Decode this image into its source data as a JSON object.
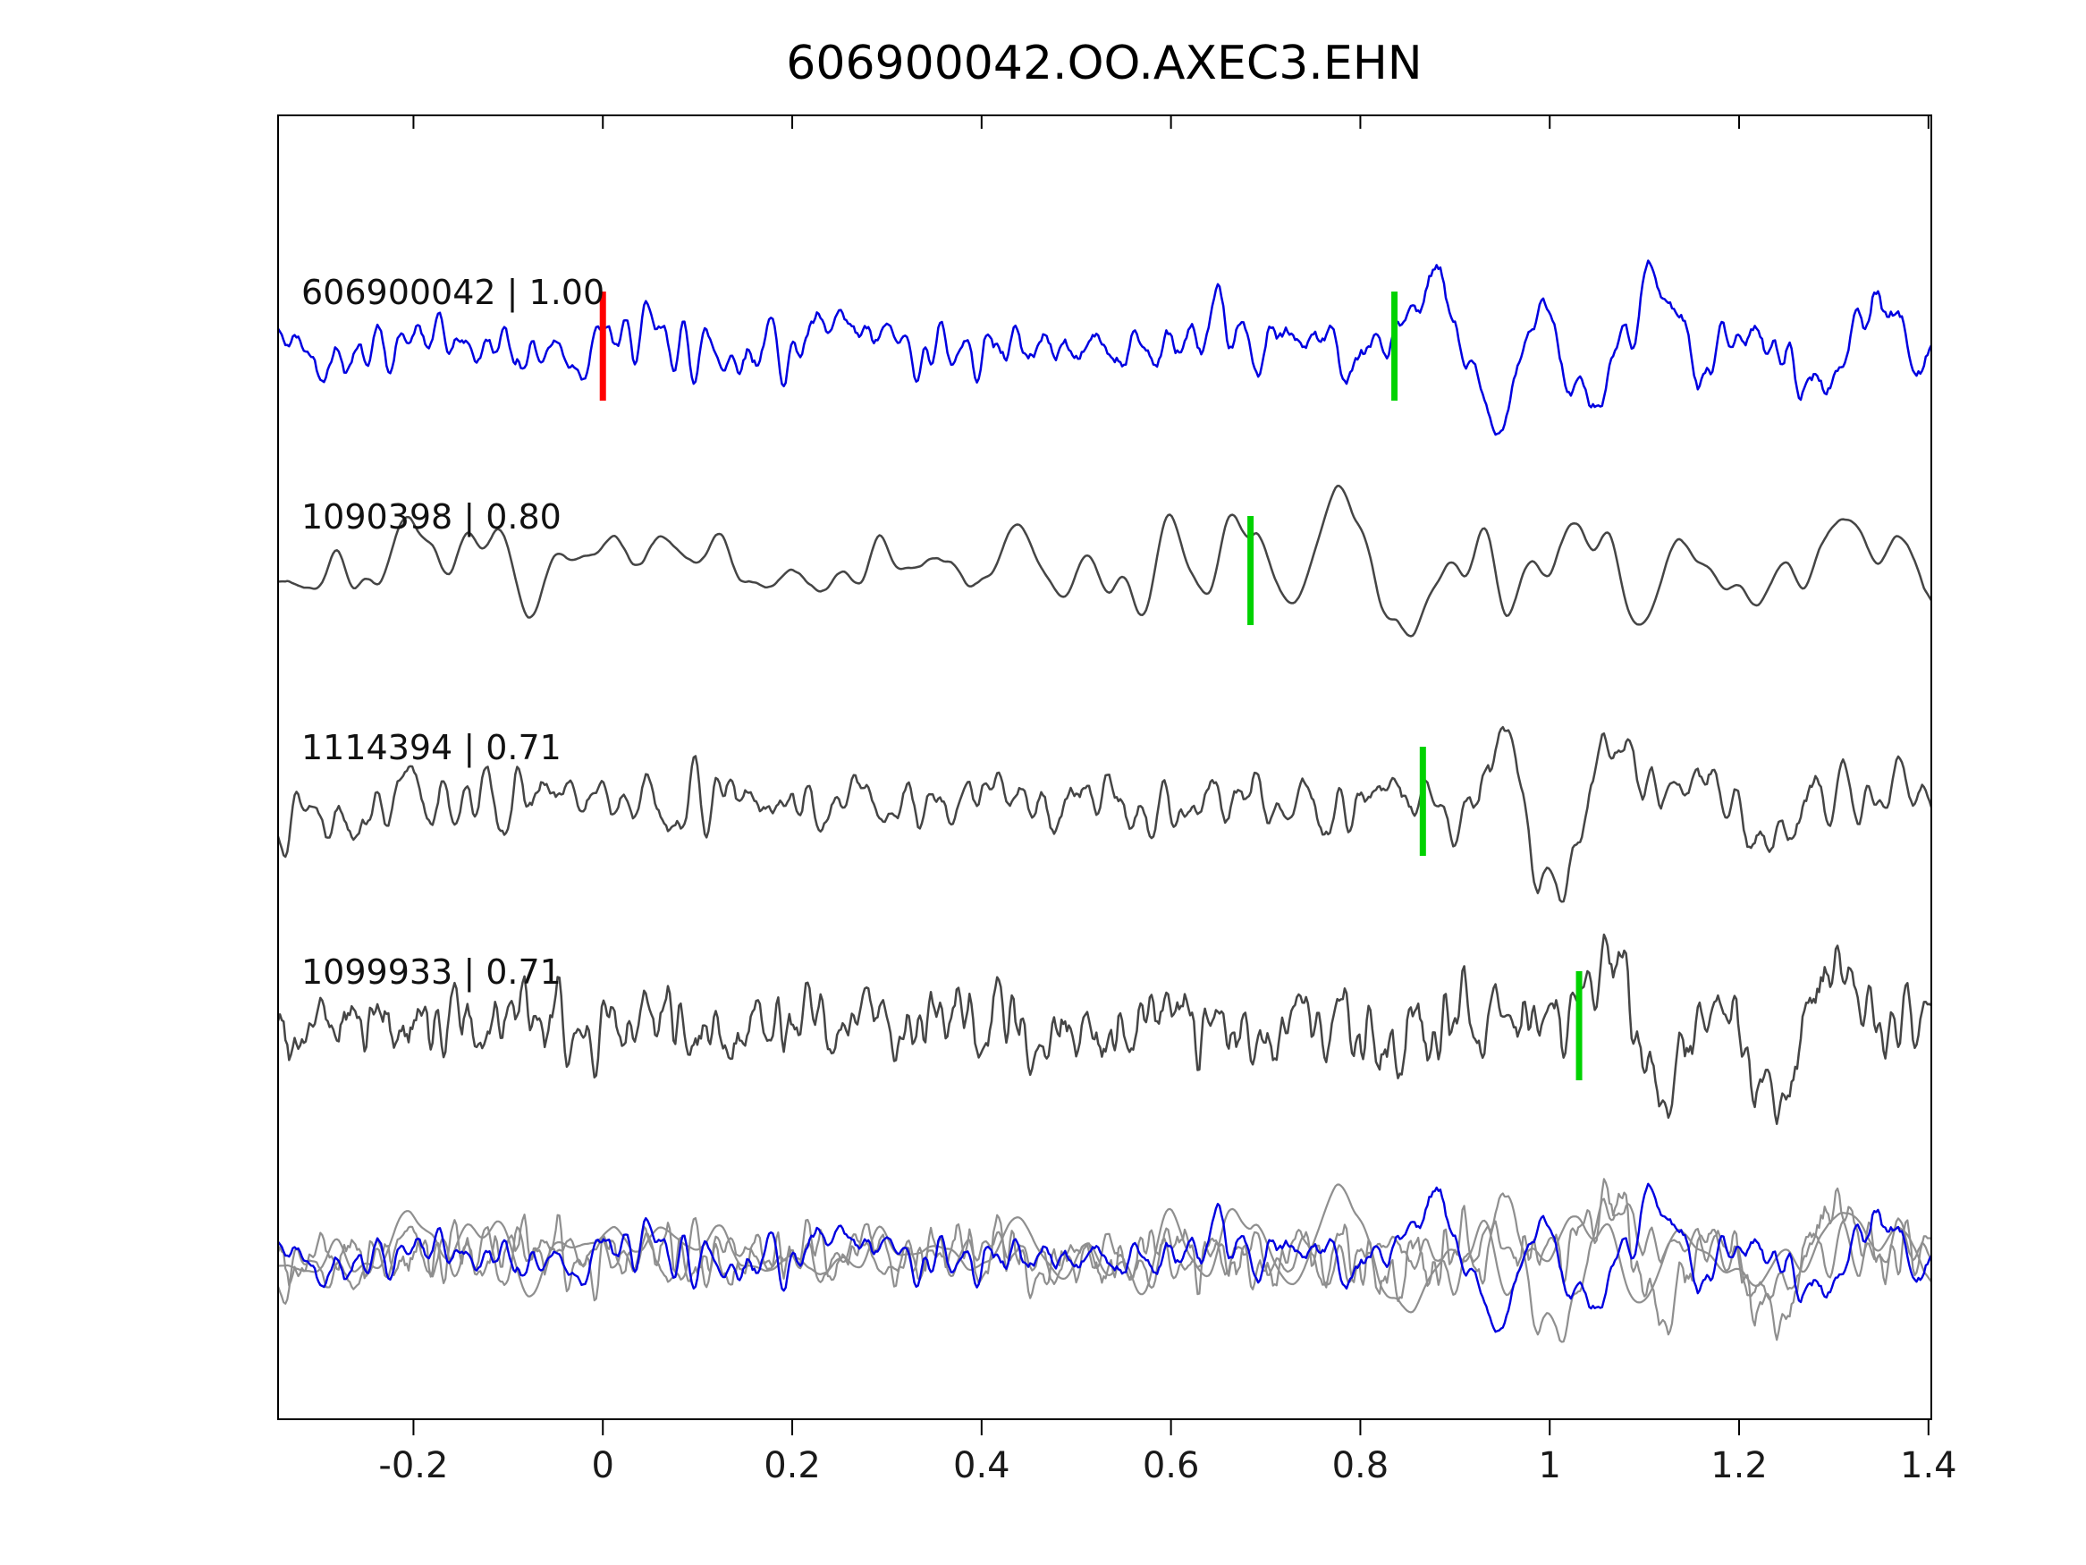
{
  "title": "606900042.OO.AXEC3.EHN",
  "chart_data": {
    "type": "line",
    "title": "606900042.OO.AXEC3.EHN",
    "xlabel": "",
    "ylabel": "",
    "xlim": [
      -0.343,
      1.403
    ],
    "grid": false,
    "legend": null,
    "xticks": [
      {
        "value": -0.2,
        "label": "-0.2"
      },
      {
        "value": 0.0,
        "label": "0"
      },
      {
        "value": 0.2,
        "label": "0.2"
      },
      {
        "value": 0.4,
        "label": "0.4"
      },
      {
        "value": 0.6,
        "label": "0.6"
      },
      {
        "value": 0.8,
        "label": "0.8"
      },
      {
        "value": 1.0,
        "label": "1"
      },
      {
        "value": 1.2,
        "label": "1.2"
      },
      {
        "value": 1.4,
        "label": "1.4"
      }
    ],
    "colors": {
      "reference_trace": "#0000e0",
      "match_trace": "#454545",
      "overlay_gray": "#8f8f8f",
      "pick_marker": "#00d200",
      "origin_marker": "#ff0000",
      "axis": "#000000"
    },
    "traces": [
      {
        "id": "606900042",
        "correlation": "1.00",
        "label": "606900042 | 1.00",
        "role": "reference",
        "color": "#0000e0",
        "pick_x": 0.836,
        "origin_x": 0.0,
        "waveform": {
          "seed": 42,
          "noise_amp": 0.17,
          "noise_window": 2,
          "noise_passes": 2,
          "arrival": 0.85,
          "burst": {
            "amp": 1.15,
            "freq": 8.5,
            "decay": 0.26,
            "phase": 0.4,
            "ramp": 0.05
          },
          "coda": {
            "amp": 0.5,
            "freq": 3.8,
            "decay": 0.55,
            "phase": 1.2
          }
        }
      },
      {
        "id": "1090398",
        "correlation": "0.80",
        "label": "1090398 | 0.80",
        "role": "match",
        "color": "#454545",
        "pick_x": 0.684,
        "waveform": {
          "seed": 7,
          "noise_amp": 0.22,
          "noise_window": 4,
          "noise_passes": 3,
          "arrival": 0.684,
          "burst": {
            "amp": 1.3,
            "freq": 8.0,
            "decay": 0.18,
            "phase": 2.8,
            "ramp": 0.03
          },
          "coda": {
            "amp": 0.45,
            "freq": 3.5,
            "decay": 0.5,
            "phase": 0.3
          }
        }
      },
      {
        "id": "1114394",
        "correlation": "0.71",
        "label": "1114394 | 0.71",
        "role": "match",
        "color": "#454545",
        "pick_x": 0.866,
        "waveform": {
          "seed": 13,
          "noise_amp": 0.17,
          "noise_window": 2,
          "noise_passes": 2,
          "arrival": 0.875,
          "burst": {
            "amp": 1.25,
            "freq": 9.0,
            "decay": 0.2,
            "phase": 3.6,
            "ramp": 0.04
          },
          "coda": {
            "amp": 0.5,
            "freq": 4.0,
            "decay": 0.5,
            "phase": 2.0
          }
        }
      },
      {
        "id": "1099933",
        "correlation": "0.71",
        "label": "1099933 | 0.71",
        "role": "match",
        "color": "#454545",
        "pick_x": 1.031,
        "waveform": {
          "seed": 99,
          "noise_amp": 0.2,
          "noise_window": 1,
          "noise_passes": 2,
          "arrival": 1.035,
          "burst": {
            "amp": 1.25,
            "freq": 8.0,
            "decay": 0.22,
            "phase": 0.6,
            "ramp": 0.04
          },
          "coda": {
            "amp": 0.5,
            "freq": 3.6,
            "decay": 0.5,
            "phase": 1.0
          }
        }
      }
    ],
    "overlay": {
      "description": "all four traces overlaid, unshifted",
      "scale": 0.85
    }
  }
}
